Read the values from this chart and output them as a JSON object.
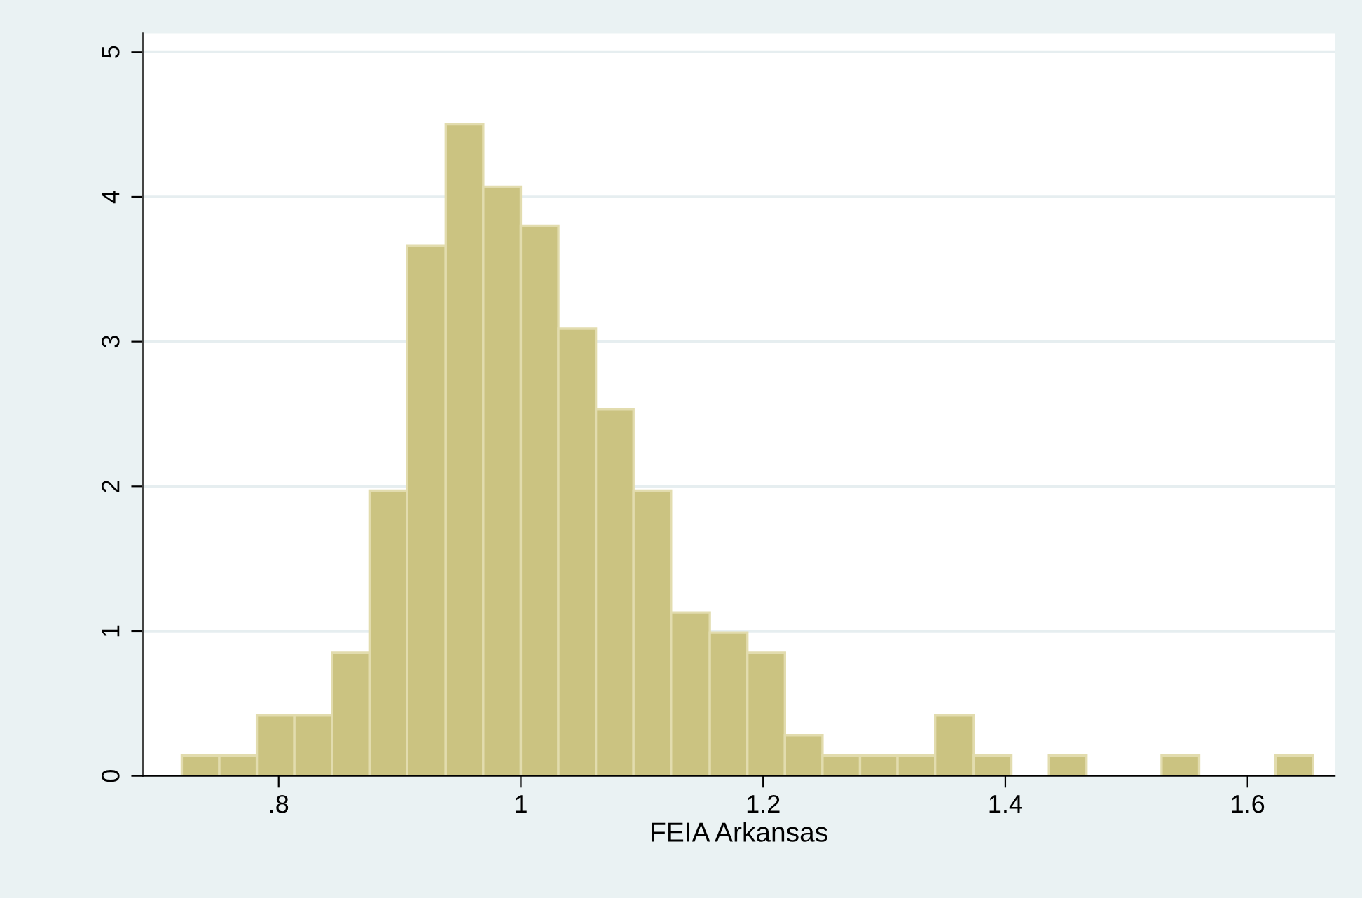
{
  "chart_data": {
    "type": "histogram",
    "xlabel": "FEIA Arkansas",
    "bins": [
      0.72,
      0.751,
      0.782,
      0.813,
      0.844,
      0.875,
      0.906,
      0.938,
      0.969,
      1.0,
      1.031,
      1.062,
      1.093,
      1.124,
      1.156,
      1.187,
      1.218,
      1.249,
      1.28,
      1.311,
      1.342,
      1.374,
      1.405,
      1.436,
      1.467,
      1.529,
      1.56,
      1.623,
      1.654
    ],
    "values": [
      0.14,
      0.14,
      0.42,
      0.42,
      0.85,
      1.97,
      3.66,
      4.5,
      4.07,
      3.8,
      3.09,
      2.53,
      1.97,
      1.13,
      0.99,
      0.85,
      0.28,
      0.14,
      0.14,
      0.14,
      0.42,
      0.14,
      0,
      0.14,
      0,
      0.14,
      0,
      0.14
    ],
    "color": "#cbc381",
    "xlim": [
      0.688,
      1.672
    ],
    "ylim": [
      0,
      5.13
    ],
    "xticks": [
      {
        "value": 0.8,
        "label": ".8"
      },
      1,
      1.2,
      1.4,
      1.6
    ],
    "yticks": [
      0,
      1,
      2,
      3,
      4,
      5
    ],
    "grid": "y"
  }
}
